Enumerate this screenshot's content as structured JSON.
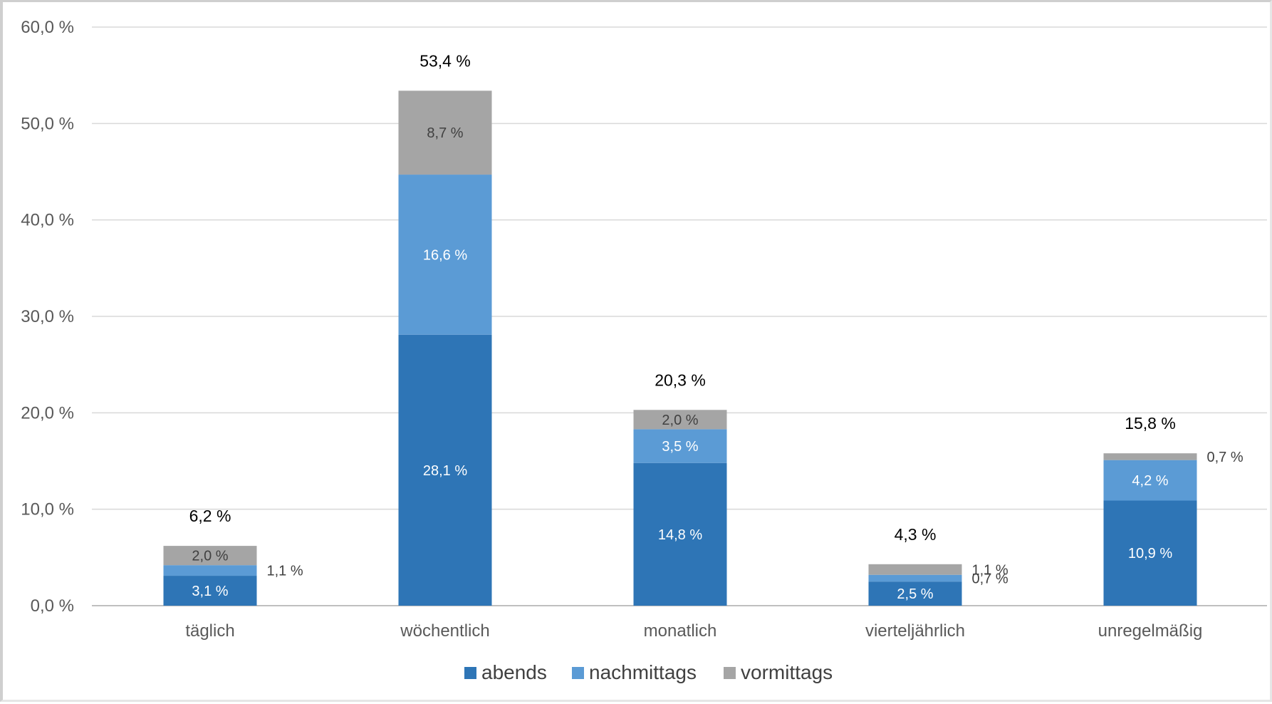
{
  "chart_data": {
    "type": "bar",
    "stacked": true,
    "title": "",
    "xlabel": "",
    "ylabel": "",
    "categories": [
      "täglich",
      "wöchentlich",
      "monatlich",
      "vierteljährlich",
      "unregelmäßig"
    ],
    "ylim": [
      0,
      60
    ],
    "yticks": [
      "0,0 %",
      "10,0 %",
      "20,0 %",
      "30,0 %",
      "40,0 %",
      "50,0 %",
      "60,0 %"
    ],
    "grid": true,
    "legend_position": "bottom",
    "series": [
      {
        "name": "abends",
        "color": "#2e75b6",
        "values": [
          3.1,
          28.1,
          14.8,
          2.5,
          10.9
        ],
        "labels": [
          "3,1 %",
          "28,1 %",
          "14,8 %",
          "2,5 %",
          "10,9 %"
        ]
      },
      {
        "name": "nachmittags",
        "color": "#5b9bd5",
        "values": [
          1.1,
          16.6,
          3.5,
          0.7,
          4.2
        ],
        "labels": [
          "1,1 %",
          "16,6 %",
          "3,5 %",
          "0,7 %",
          "4,2 %"
        ]
      },
      {
        "name": "vormittags",
        "color": "#a5a5a5",
        "values": [
          2.0,
          8.7,
          2.0,
          1.1,
          0.7
        ],
        "labels": [
          "2,0 %",
          "8,7 %",
          "2,0 %",
          "1,1 %",
          "0,7 %"
        ]
      }
    ],
    "totals": [
      6.2,
      53.4,
      20.3,
      4.3,
      15.8
    ],
    "total_labels": [
      "6,2 %",
      "53,4 %",
      "20,3 %",
      "4,3 %",
      "15,8 %"
    ]
  }
}
